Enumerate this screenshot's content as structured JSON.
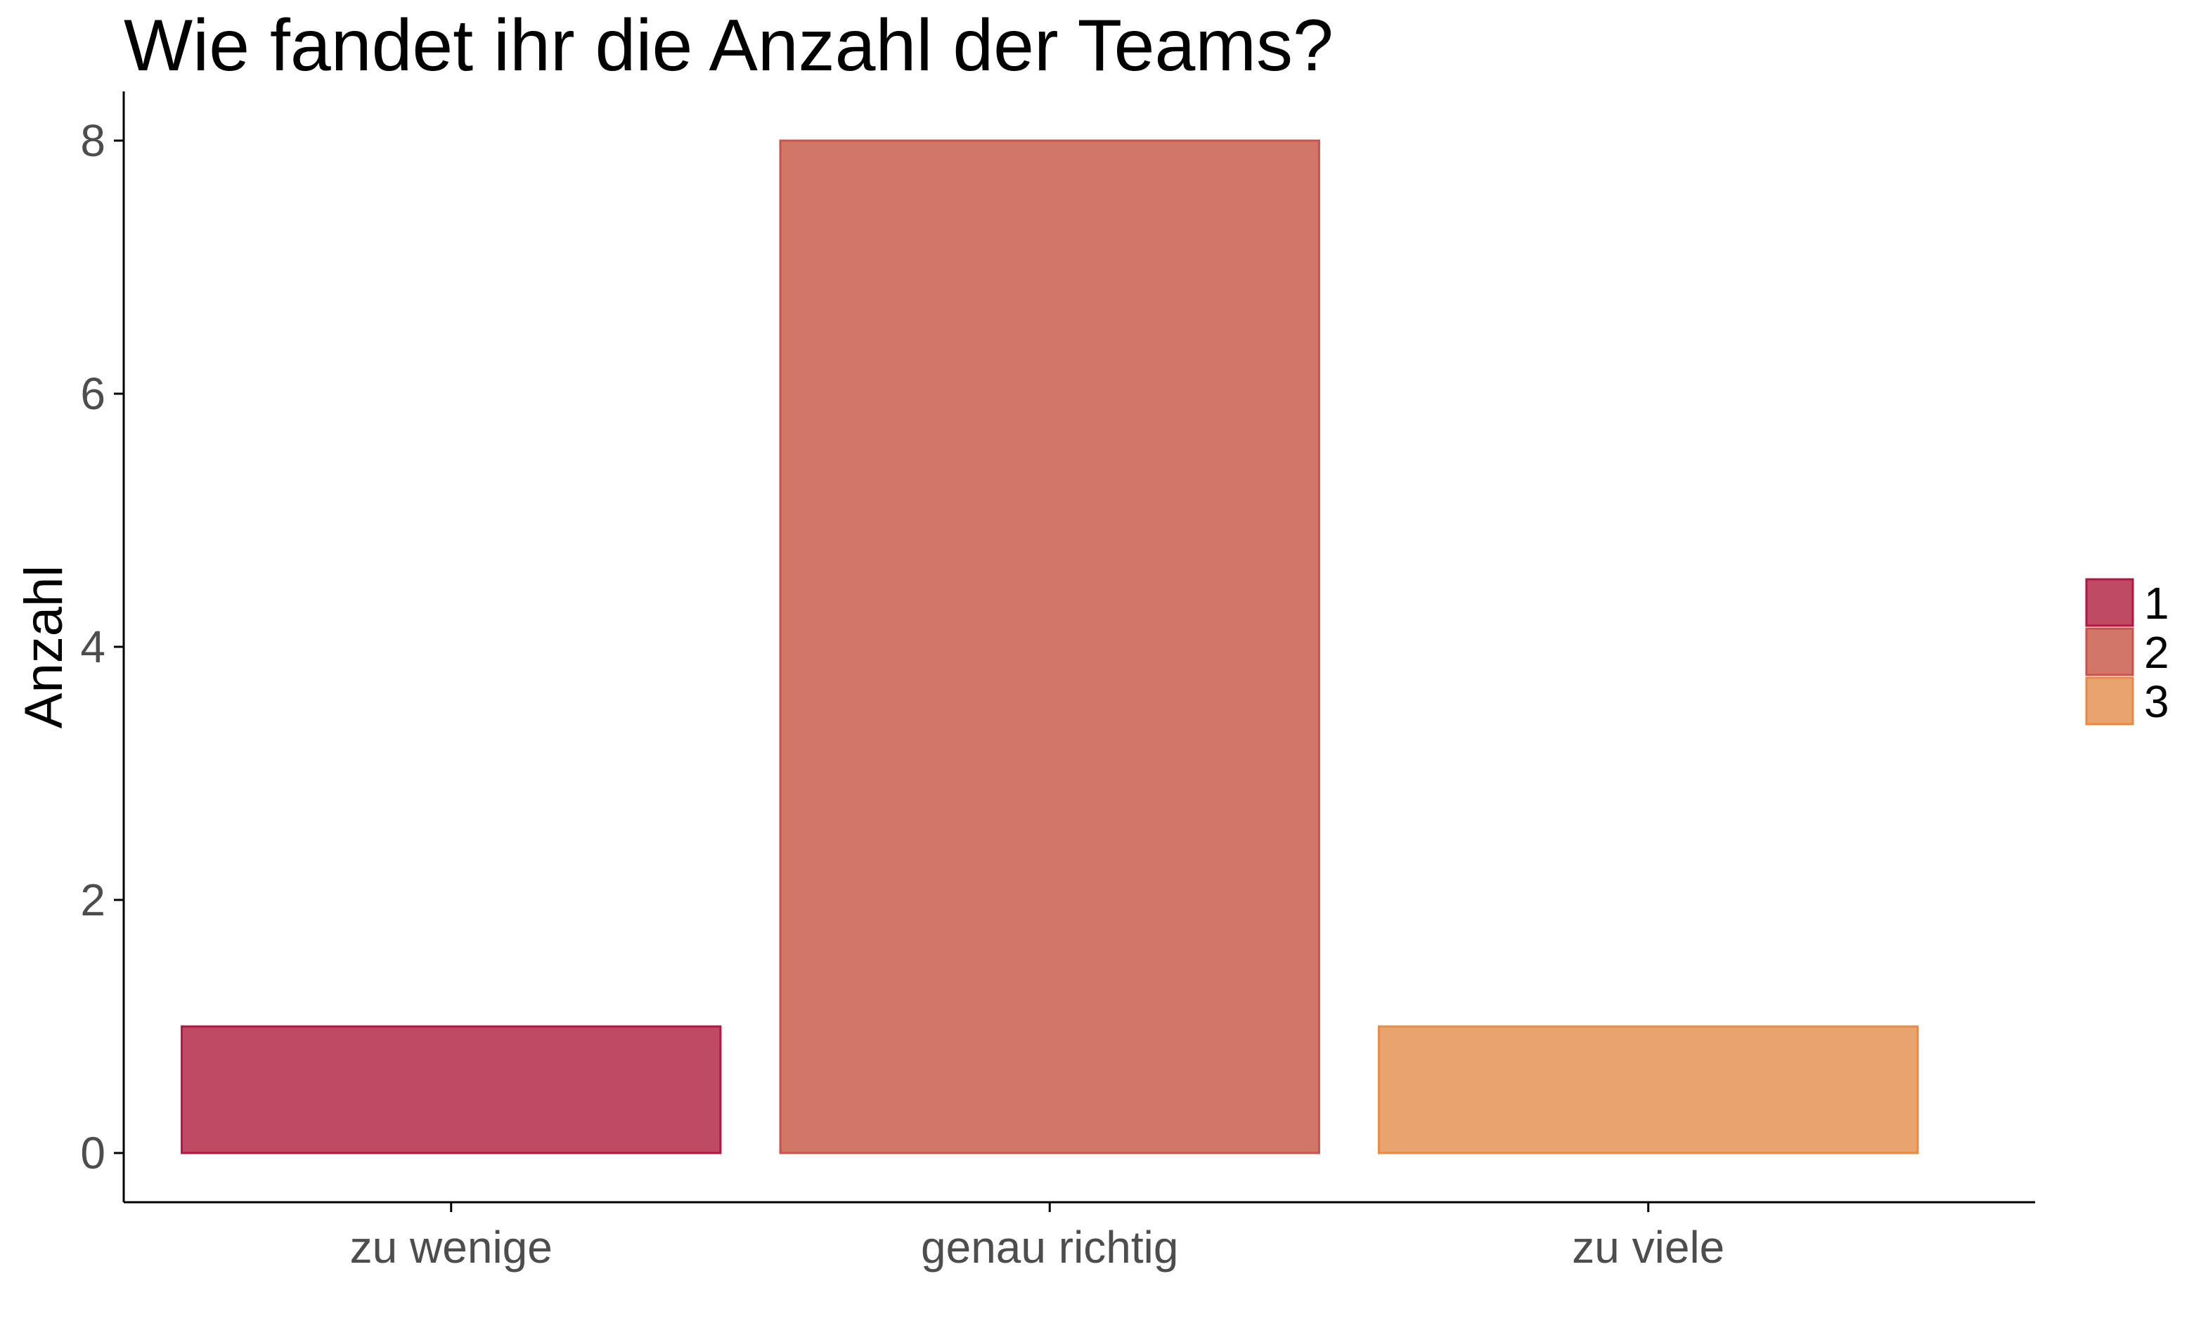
{
  "chart_data": {
    "type": "bar",
    "title": "Wie fandet ihr die Anzahl der Teams?",
    "xlabel": "",
    "ylabel": "Anzahl",
    "categories": [
      "zu wenige",
      "genau richtig",
      "zu viele"
    ],
    "values": [
      1,
      8,
      1
    ],
    "fill_groups": [
      "1",
      "2",
      "3"
    ],
    "ylim": [
      0,
      8
    ],
    "yticks": [
      "0",
      "2",
      "4",
      "6",
      "8"
    ],
    "grid": false,
    "legend": {
      "position": "right",
      "entries": [
        "1",
        "2",
        "3"
      ]
    },
    "colors": {
      "fills": [
        "#bf4a63",
        "#d27668",
        "#e9a36f"
      ],
      "strokes": [
        "#b3163f",
        "#c9534a",
        "#e68a44"
      ],
      "axis": "#000000",
      "tick_text": "#4d4d4d"
    }
  }
}
